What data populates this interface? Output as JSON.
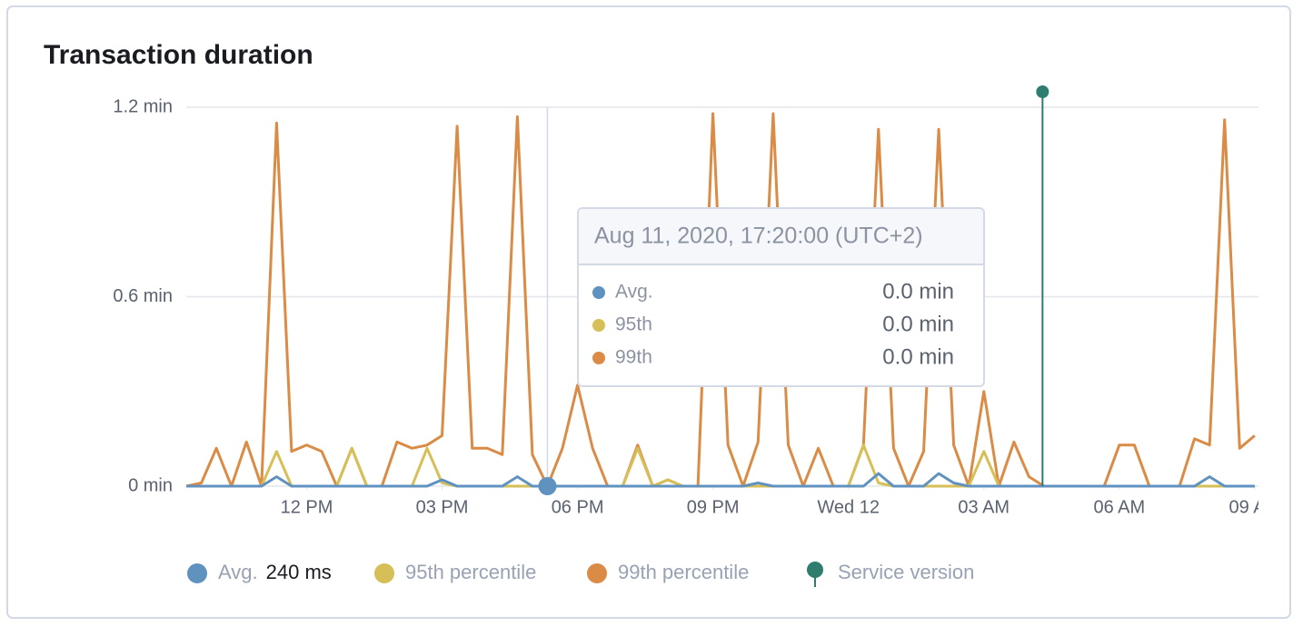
{
  "chart_data": {
    "type": "line",
    "title": "Transaction duration",
    "x": [
      "2020-08-11 09:20",
      "2020-08-11 09:40",
      "2020-08-11 10:00",
      "2020-08-11 10:20",
      "2020-08-11 10:40",
      "2020-08-11 11:00",
      "2020-08-11 11:20",
      "2020-08-11 11:40",
      "2020-08-11 12:00",
      "2020-08-11 12:20",
      "2020-08-11 12:40",
      "2020-08-11 13:00",
      "2020-08-11 13:20",
      "2020-08-11 13:40",
      "2020-08-11 14:00",
      "2020-08-11 14:20",
      "2020-08-11 14:40",
      "2020-08-11 15:00",
      "2020-08-11 15:20",
      "2020-08-11 15:40",
      "2020-08-11 16:00",
      "2020-08-11 16:20",
      "2020-08-11 16:40",
      "2020-08-11 17:00",
      "2020-08-11 17:20",
      "2020-08-11 17:40",
      "2020-08-11 18:00",
      "2020-08-11 18:20",
      "2020-08-11 18:40",
      "2020-08-11 19:00",
      "2020-08-11 19:20",
      "2020-08-11 19:40",
      "2020-08-11 20:00",
      "2020-08-11 20:20",
      "2020-08-11 20:40",
      "2020-08-11 21:00",
      "2020-08-11 21:20",
      "2020-08-11 21:40",
      "2020-08-11 22:00",
      "2020-08-11 22:20",
      "2020-08-11 22:40",
      "2020-08-11 23:00",
      "2020-08-11 23:20",
      "2020-08-11 23:40",
      "2020-08-12 00:00",
      "2020-08-12 00:20",
      "2020-08-12 00:40",
      "2020-08-12 01:00",
      "2020-08-12 01:20",
      "2020-08-12 01:40",
      "2020-08-12 02:00",
      "2020-08-12 02:20",
      "2020-08-12 02:40",
      "2020-08-12 03:00",
      "2020-08-12 03:20",
      "2020-08-12 03:40",
      "2020-08-12 04:00",
      "2020-08-12 04:20",
      "2020-08-12 04:40",
      "2020-08-12 05:00",
      "2020-08-12 05:20",
      "2020-08-12 05:40",
      "2020-08-12 06:00",
      "2020-08-12 06:20",
      "2020-08-12 06:40",
      "2020-08-12 07:00",
      "2020-08-12 07:20",
      "2020-08-12 07:40",
      "2020-08-12 08:00",
      "2020-08-12 08:20",
      "2020-08-12 08:40",
      "2020-08-12 09:00"
    ],
    "series": [
      {
        "name": "99th percentile",
        "color": "#da8b45",
        "values": [
          0,
          0.01,
          0.12,
          0,
          0.14,
          0,
          1.15,
          0.11,
          0.13,
          0.11,
          0,
          0.12,
          0,
          0,
          0.14,
          0.12,
          0.13,
          0.16,
          1.14,
          0.12,
          0.12,
          0.1,
          1.17,
          0.1,
          0,
          0.12,
          0.32,
          0.12,
          0,
          0,
          0.13,
          0,
          0.02,
          0,
          0,
          1.18,
          0.13,
          0,
          0.14,
          1.18,
          0.13,
          0,
          0.12,
          0,
          0,
          0.13,
          1.13,
          0.12,
          0,
          0.11,
          1.13,
          0.13,
          0,
          0.3,
          0,
          0.14,
          0.03,
          0,
          0,
          0,
          0,
          0,
          0.13,
          0.13,
          0,
          0,
          0,
          0.15,
          0.13,
          1.16,
          0.12,
          0.16
        ]
      },
      {
        "name": "95th percentile",
        "color": "#d6bf57",
        "values": [
          0,
          0,
          0,
          0,
          0,
          0,
          0.11,
          0,
          0,
          0,
          0,
          0.12,
          0,
          0,
          0,
          0,
          0.12,
          0.01,
          0,
          0,
          0,
          0,
          0,
          0,
          0,
          0,
          0,
          0,
          0,
          0,
          0.12,
          0,
          0.02,
          0,
          0,
          0,
          0,
          0,
          0,
          0,
          0,
          0,
          0,
          0,
          0,
          0.13,
          0.01,
          0,
          0,
          0,
          0,
          0,
          0,
          0.11,
          0,
          0,
          0,
          0,
          0,
          0,
          0,
          0,
          0,
          0,
          0,
          0,
          0,
          0,
          0,
          0,
          0,
          0
        ]
      },
      {
        "name": "Avg.",
        "legend_value": "240 ms",
        "color": "#6092c0",
        "values": [
          0,
          0,
          0,
          0,
          0,
          0,
          0.03,
          0,
          0,
          0,
          0,
          0,
          0,
          0,
          0,
          0,
          0,
          0.02,
          0,
          0,
          0,
          0,
          0.03,
          0,
          0,
          0,
          0,
          0,
          0,
          0,
          0,
          0,
          0,
          0,
          0,
          0,
          0,
          0,
          0.01,
          0,
          0,
          0,
          0,
          0,
          0,
          0,
          0.04,
          0,
          0,
          0,
          0.04,
          0.01,
          0,
          0,
          0,
          0,
          0,
          0,
          0,
          0,
          0,
          0,
          0,
          0,
          0,
          0,
          0,
          0,
          0.03,
          0,
          0,
          0
        ]
      }
    ],
    "xlim": [
      "2020-08-11 09:20",
      "2020-08-12 09:05"
    ],
    "xticks": [
      {
        "value": "2020-08-11 12:00",
        "label": "12 PM"
      },
      {
        "value": "2020-08-11 15:00",
        "label": "03 PM"
      },
      {
        "value": "2020-08-11 18:00",
        "label": "06 PM"
      },
      {
        "value": "2020-08-11 21:00",
        "label": "09 PM"
      },
      {
        "value": "2020-08-12 00:00",
        "label": "Wed 12"
      },
      {
        "value": "2020-08-12 03:00",
        "label": "03 AM"
      },
      {
        "value": "2020-08-12 06:00",
        "label": "06 AM"
      },
      {
        "value": "2020-08-12 09:00",
        "label": "09 AM"
      }
    ],
    "ylim": [
      0,
      1.2
    ],
    "yticks": [
      {
        "value": 0,
        "label": "0 min"
      },
      {
        "value": 0.6,
        "label": "0.6 min"
      },
      {
        "value": 1.2,
        "label": "1.2 min"
      }
    ],
    "grid": true,
    "annotation": {
      "x": "2020-08-12 04:18",
      "label": "Service version",
      "color": "#2e7d6e"
    },
    "tooltip": {
      "x": "2020-08-11 17:20",
      "title": "Aug 11, 2020, 17:20:00 (UTC+2)",
      "names": [
        "Avg.",
        "95th",
        "99th"
      ],
      "values": [
        0,
        0,
        0
      ],
      "value_labels": [
        "0.0 min",
        "0.0 min",
        "0.0 min"
      ]
    }
  }
}
